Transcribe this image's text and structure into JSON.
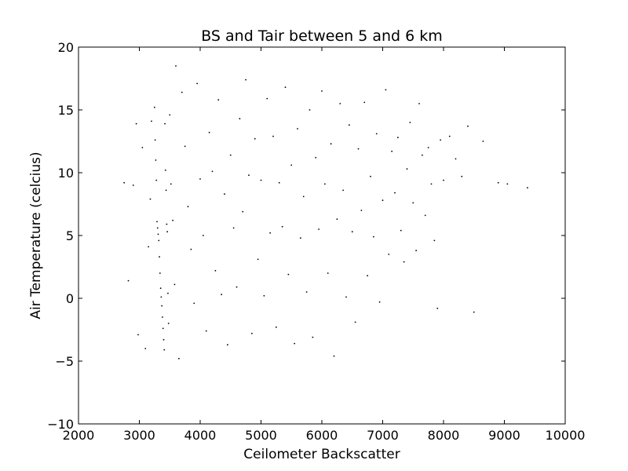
{
  "chart_data": {
    "type": "scatter",
    "title": "BS and Tair between 5 and 6 km",
    "xlabel": "Ceilometer Backscatter",
    "ylabel": "Air Temperature (celcius)",
    "xlim": [
      2000,
      10000
    ],
    "ylim": [
      -10,
      20
    ],
    "xticks": [
      2000,
      3000,
      4000,
      5000,
      6000,
      7000,
      8000,
      9000,
      10000
    ],
    "yticks": [
      -10,
      -5,
      0,
      5,
      10,
      15,
      20
    ],
    "xtick_labels": [
      "2000",
      "3000",
      "4000",
      "5000",
      "6000",
      "7000",
      "8000",
      "9000",
      "10000"
    ],
    "ytick_labels": [
      "−10",
      "−5",
      "0",
      "5",
      "10",
      "15",
      "20"
    ],
    "grid": false,
    "marker_color": "#000000",
    "points": [
      [
        2750,
        9.2
      ],
      [
        2820,
        1.4
      ],
      [
        2900,
        9.0
      ],
      [
        2950,
        13.9
      ],
      [
        2980,
        -2.9
      ],
      [
        3050,
        12.0
      ],
      [
        3100,
        -4.0
      ],
      [
        3150,
        4.1
      ],
      [
        3180,
        7.9
      ],
      [
        3200,
        14.1
      ],
      [
        3250,
        15.2
      ],
      [
        3260,
        12.6
      ],
      [
        3270,
        11.0
      ],
      [
        3280,
        9.4
      ],
      [
        3290,
        6.1
      ],
      [
        3300,
        5.6
      ],
      [
        3310,
        5.1
      ],
      [
        3320,
        4.6
      ],
      [
        3330,
        3.3
      ],
      [
        3340,
        2.0
      ],
      [
        3350,
        0.8
      ],
      [
        3360,
        0.1
      ],
      [
        3370,
        -0.6
      ],
      [
        3380,
        -1.5
      ],
      [
        3390,
        -2.4
      ],
      [
        3400,
        -3.3
      ],
      [
        3410,
        -4.1
      ],
      [
        3420,
        13.9
      ],
      [
        3430,
        10.2
      ],
      [
        3440,
        8.6
      ],
      [
        3450,
        5.9
      ],
      [
        3460,
        5.3
      ],
      [
        3470,
        0.4
      ],
      [
        3480,
        -2.0
      ],
      [
        3500,
        14.6
      ],
      [
        3520,
        9.1
      ],
      [
        3550,
        6.2
      ],
      [
        3580,
        1.1
      ],
      [
        3600,
        18.5
      ],
      [
        3650,
        -4.8
      ],
      [
        3700,
        16.4
      ],
      [
        3750,
        12.1
      ],
      [
        3800,
        7.3
      ],
      [
        3850,
        3.9
      ],
      [
        3900,
        -0.4
      ],
      [
        3950,
        17.1
      ],
      [
        4000,
        9.5
      ],
      [
        4050,
        5.0
      ],
      [
        4100,
        -2.6
      ],
      [
        4150,
        13.2
      ],
      [
        4200,
        10.1
      ],
      [
        4250,
        2.2
      ],
      [
        4300,
        15.8
      ],
      [
        4350,
        0.3
      ],
      [
        4400,
        8.3
      ],
      [
        4450,
        -3.7
      ],
      [
        4500,
        11.4
      ],
      [
        4550,
        5.6
      ],
      [
        4600,
        0.9
      ],
      [
        4650,
        14.3
      ],
      [
        4700,
        6.9
      ],
      [
        4750,
        17.4
      ],
      [
        4800,
        9.8
      ],
      [
        4850,
        -2.8
      ],
      [
        4900,
        12.7
      ],
      [
        4950,
        3.1
      ],
      [
        5000,
        9.4
      ],
      [
        5050,
        0.2
      ],
      [
        5100,
        15.9
      ],
      [
        5150,
        5.2
      ],
      [
        5200,
        12.9
      ],
      [
        5250,
        -2.3
      ],
      [
        5300,
        9.2
      ],
      [
        5350,
        5.7
      ],
      [
        5400,
        16.8
      ],
      [
        5450,
        1.9
      ],
      [
        5500,
        10.6
      ],
      [
        5550,
        -3.6
      ],
      [
        5600,
        13.5
      ],
      [
        5650,
        4.8
      ],
      [
        5700,
        8.1
      ],
      [
        5750,
        0.5
      ],
      [
        5800,
        15.0
      ],
      [
        5850,
        -3.1
      ],
      [
        5900,
        11.2
      ],
      [
        5950,
        5.5
      ],
      [
        6000,
        16.5
      ],
      [
        6050,
        9.1
      ],
      [
        6100,
        2.0
      ],
      [
        6150,
        12.3
      ],
      [
        6200,
        -4.6
      ],
      [
        6250,
        6.3
      ],
      [
        6300,
        15.5
      ],
      [
        6350,
        8.6
      ],
      [
        6400,
        0.1
      ],
      [
        6450,
        13.8
      ],
      [
        6500,
        5.3
      ],
      [
        6550,
        -1.9
      ],
      [
        6600,
        11.9
      ],
      [
        6650,
        7.0
      ],
      [
        6700,
        15.6
      ],
      [
        6750,
        1.8
      ],
      [
        6800,
        9.7
      ],
      [
        6850,
        4.9
      ],
      [
        6900,
        13.1
      ],
      [
        6950,
        -0.3
      ],
      [
        7000,
        7.8
      ],
      [
        7050,
        16.6
      ],
      [
        7100,
        3.5
      ],
      [
        7150,
        11.7
      ],
      [
        7200,
        8.4
      ],
      [
        7250,
        12.8
      ],
      [
        7300,
        5.4
      ],
      [
        7350,
        2.9
      ],
      [
        7400,
        10.3
      ],
      [
        7450,
        14.0
      ],
      [
        7500,
        7.6
      ],
      [
        7550,
        3.8
      ],
      [
        7600,
        15.5
      ],
      [
        7650,
        11.4
      ],
      [
        7700,
        6.6
      ],
      [
        7750,
        12.0
      ],
      [
        7800,
        9.1
      ],
      [
        7850,
        4.6
      ],
      [
        7900,
        -0.8
      ],
      [
        7950,
        12.6
      ],
      [
        8000,
        9.4
      ],
      [
        8100,
        12.9
      ],
      [
        8200,
        11.1
      ],
      [
        8300,
        9.7
      ],
      [
        8400,
        13.7
      ],
      [
        8500,
        -1.1
      ],
      [
        8650,
        12.5
      ],
      [
        8900,
        9.2
      ],
      [
        9050,
        9.1
      ],
      [
        9380,
        8.8
      ]
    ]
  }
}
